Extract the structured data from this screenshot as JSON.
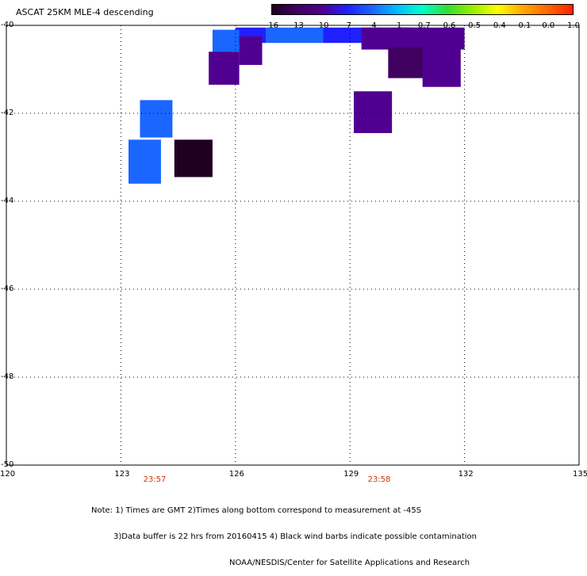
{
  "title": "ASCAT 25KM MLE-4 descending",
  "colorbar": {
    "labels": [
      "-16",
      "-13",
      "-10",
      "-7",
      "-4",
      "-1",
      "-0.7",
      "-0.6",
      "-0.5",
      "-0.4",
      "-0.1",
      "0.0",
      "1.0"
    ],
    "colors": [
      "#200020",
      "#400060",
      "#500090",
      "#2020ff",
      "#1a66ff",
      "#00bfff",
      "#00ffcc",
      "#33dd33",
      "#99ee00",
      "#ffff00",
      "#ffaa00",
      "#ff6600",
      "#ff2200"
    ]
  },
  "lat_labels": [
    "-40",
    "-42",
    "-44",
    "-46",
    "-48",
    "-50"
  ],
  "lon_labels": [
    "120",
    "123",
    "126",
    "129",
    "132",
    "135"
  ],
  "time_labels": [
    "23:57",
    "23:58"
  ],
  "notes": [
    "Note: 1) Times are GMT 2)Times along bottom correspond to measurement at -45S",
    "3)Data buffer is 22 hrs from 20160415 4) Black wind barbs indicate possible contamination",
    "NOAA/NESDIS/Center for Satellite Applications and Research"
  ],
  "map_data": {
    "lon_range": [
      120,
      135
    ],
    "lat_range": [
      -50,
      -40
    ],
    "cells": [
      {
        "lon": 126.8,
        "lat": -40.05,
        "w": 1.5,
        "h": 0.35,
        "color": "#1a66ff"
      },
      {
        "lon": 128.3,
        "lat": -40.05,
        "w": 1.6,
        "h": 0.35,
        "color": "#2020ff"
      },
      {
        "lon": 126.0,
        "lat": -40.05,
        "w": 0.8,
        "h": 0.35,
        "color": "#2020ff"
      },
      {
        "lon": 129.9,
        "lat": -40.05,
        "w": 1.1,
        "h": 0.35,
        "color": "#1a66ff"
      },
      {
        "lon": 125.4,
        "lat": -40.1,
        "w": 0.7,
        "h": 0.5,
        "color": "#1a66ff"
      },
      {
        "lon": 125.4,
        "lat": -40.6,
        "w": 0.5,
        "h": 0.25,
        "color": "#2020ff"
      },
      {
        "lon": 126.1,
        "lat": -40.25,
        "w": 0.6,
        "h": 0.65,
        "color": "#500090"
      },
      {
        "lon": 125.3,
        "lat": -40.6,
        "w": 0.8,
        "h": 0.75,
        "color": "#500090"
      },
      {
        "lon": 129.3,
        "lat": -40.05,
        "w": 1.3,
        "h": 0.5,
        "color": "#500090"
      },
      {
        "lon": 130.3,
        "lat": -40.05,
        "w": 1.7,
        "h": 0.5,
        "color": "#500090"
      },
      {
        "lon": 130.0,
        "lat": -40.5,
        "w": 1.1,
        "h": 0.7,
        "color": "#400060"
      },
      {
        "lon": 130.9,
        "lat": -40.5,
        "w": 1.0,
        "h": 0.9,
        "color": "#500090"
      },
      {
        "lon": 129.1,
        "lat": -41.5,
        "w": 1.0,
        "h": 0.95,
        "color": "#500090"
      },
      {
        "lon": 123.5,
        "lat": -41.7,
        "w": 0.85,
        "h": 0.85,
        "color": "#1a66ff"
      },
      {
        "lon": 123.2,
        "lat": -42.6,
        "w": 0.85,
        "h": 1.0,
        "color": "#1a66ff"
      },
      {
        "lon": 124.4,
        "lat": -42.6,
        "w": 1.0,
        "h": 0.85,
        "color": "#200020"
      }
    ]
  }
}
